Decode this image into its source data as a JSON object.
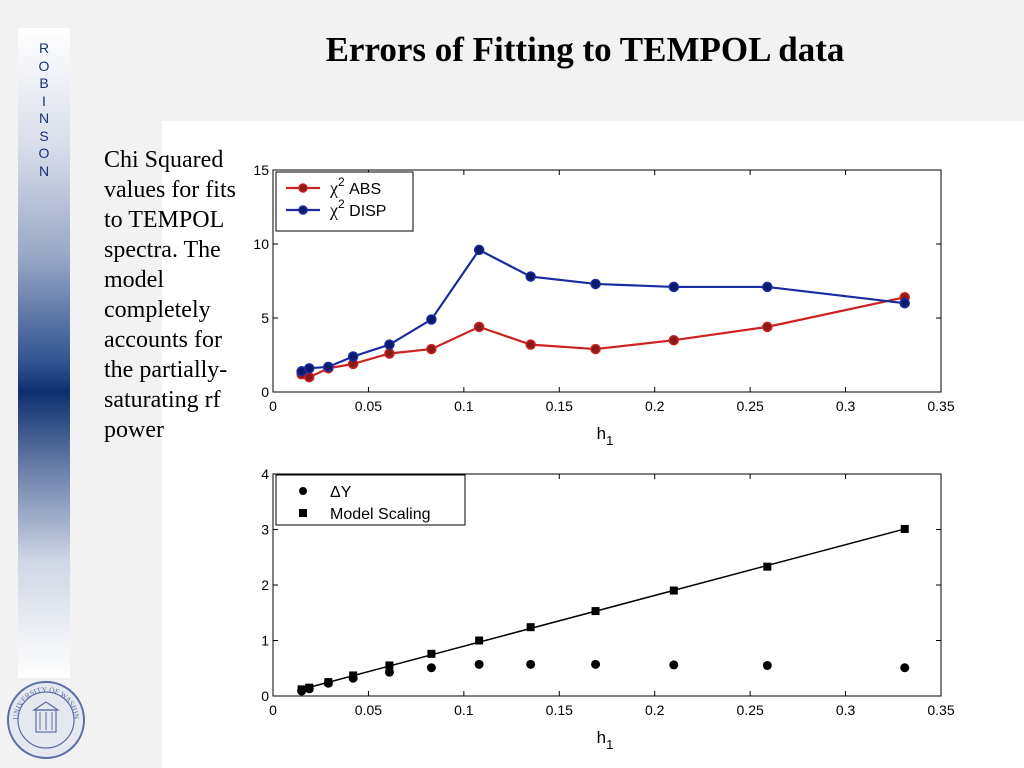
{
  "slide": {
    "title": "Errors of Fitting to TEMPOL data",
    "side_letters": [
      "R",
      "O",
      "B",
      "I",
      "N",
      "S",
      "O",
      "N"
    ],
    "caption": "Chi Squared values for fits to TEMPOL spectra.  The model completely accounts for the partially-saturating rf power",
    "logo": "university-of-washington-seal",
    "logo_text": "UNIVERSITY OF WASHINGTON 1861"
  },
  "chart_data": [
    {
      "type": "line",
      "xlabel": "h",
      "xlabel_sub": "1",
      "ylabel": "",
      "xlim": [
        0,
        0.35
      ],
      "ylim": [
        0,
        15
      ],
      "xticks": [
        "0",
        "0.05",
        "0.1",
        "0.15",
        "0.2",
        "0.25",
        "0.3",
        "0.35"
      ],
      "yticks": [
        "0",
        "5",
        "10",
        "15"
      ],
      "grid": false,
      "legend_position": "top-left",
      "x": [
        0.015,
        0.019,
        0.029,
        0.042,
        0.061,
        0.083,
        0.108,
        0.135,
        0.169,
        0.21,
        0.259,
        0.331
      ],
      "series": [
        {
          "name": "χ² ABS",
          "legend_main": "χ",
          "legend_sup": "2",
          "legend_rest": " ABS",
          "color": "#cc2222",
          "marker": "circle",
          "values": [
            1.2,
            1.0,
            1.6,
            1.9,
            2.6,
            2.9,
            4.4,
            3.2,
            2.9,
            3.5,
            4.4,
            6.4
          ]
        },
        {
          "name": "χ² DISP",
          "legend_main": "χ",
          "legend_sup": "2",
          "legend_rest": " DISP",
          "color": "#1a2aa0",
          "marker": "circle",
          "values": [
            1.4,
            1.6,
            1.7,
            2.4,
            3.2,
            4.9,
            9.6,
            7.8,
            7.3,
            7.1,
            7.1,
            6.0
          ]
        }
      ]
    },
    {
      "type": "scatter",
      "xlabel": "h",
      "xlabel_sub": "1",
      "ylabel": "",
      "xlim": [
        0,
        0.35
      ],
      "ylim": [
        0,
        4
      ],
      "xticks": [
        "0",
        "0.05",
        "0.1",
        "0.15",
        "0.2",
        "0.25",
        "0.3",
        "0.35"
      ],
      "yticks": [
        "0",
        "1",
        "2",
        "3",
        "4"
      ],
      "grid": false,
      "legend_position": "top-left",
      "x": [
        0.015,
        0.019,
        0.029,
        0.042,
        0.061,
        0.083,
        0.108,
        0.135,
        0.169,
        0.21,
        0.259,
        0.331
      ],
      "series": [
        {
          "name": "ΔY",
          "color": "#000000",
          "marker": "circle",
          "values": [
            0.09,
            0.13,
            0.23,
            0.32,
            0.43,
            0.51,
            0.57,
            0.57,
            0.57,
            0.56,
            0.55,
            0.51
          ]
        },
        {
          "name": "Model Scaling",
          "color": "#000000",
          "marker": "square",
          "line": true,
          "values": [
            0.12,
            0.15,
            0.25,
            0.37,
            0.55,
            0.76,
            1.0,
            1.24,
            1.53,
            1.9,
            2.33,
            3.01
          ]
        }
      ]
    }
  ]
}
